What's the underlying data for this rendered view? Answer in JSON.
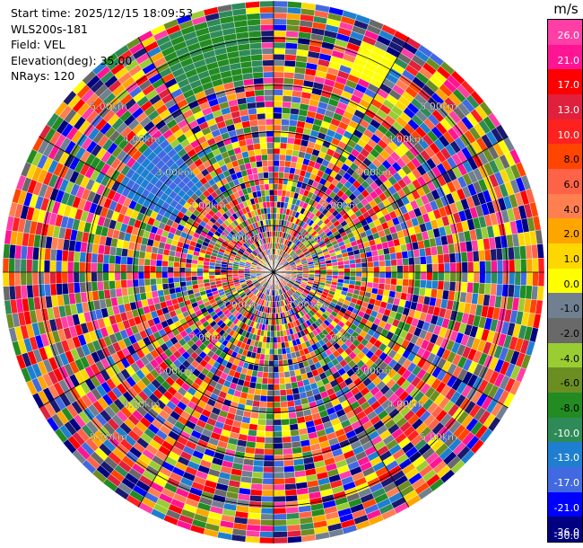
{
  "header": {
    "start_time": "Start time: 2025/12/15 18:09:53",
    "instrument": "WLS200s-181",
    "field": "Field: VEL",
    "elevation": "Elevation(deg): 35.00",
    "nrays": "NRays: 120"
  },
  "colorbar": {
    "unit": "m/s",
    "ticks": [
      "26.0",
      "21.0",
      "17.0",
      "13.0",
      "10.0",
      "8.0",
      "6.0",
      "4.0",
      "2.0",
      "1.0",
      "0.0",
      "-1.0",
      "-2.0",
      "-4.0",
      "-6.0",
      "-8.0",
      "-10.0",
      "-13.0",
      "-17.0",
      "-21.0",
      "-26.0",
      "-30.0"
    ],
    "colors": [
      "#ff3ea6",
      "#ff1493",
      "#ff0000",
      "#e0203c",
      "#ff2020",
      "#ff4500",
      "#ff6347",
      "#ff7f50",
      "#ffa500",
      "#ffd700",
      "#ffff00",
      "#708090",
      "#696969",
      "#9acd32",
      "#6b8e23",
      "#228b22",
      "#2e8b57",
      "#1e7fd0",
      "#4169e1",
      "#0000ff",
      "#000080",
      "#191970"
    ]
  },
  "chart_data": {
    "type": "ppi",
    "title": "",
    "field": "VEL",
    "units": "m/s",
    "nrays": 120,
    "elevation_deg": 35.0,
    "range_rings_km": [
      1.0,
      2.0,
      3.0,
      4.0,
      5.0
    ],
    "range_ring_labels": [
      "1.00km",
      "2.00km",
      "3.00km",
      "4.00km",
      "5.00km"
    ],
    "max_range_km": 5.8,
    "value_range": [
      -30.0,
      26.0
    ]
  }
}
